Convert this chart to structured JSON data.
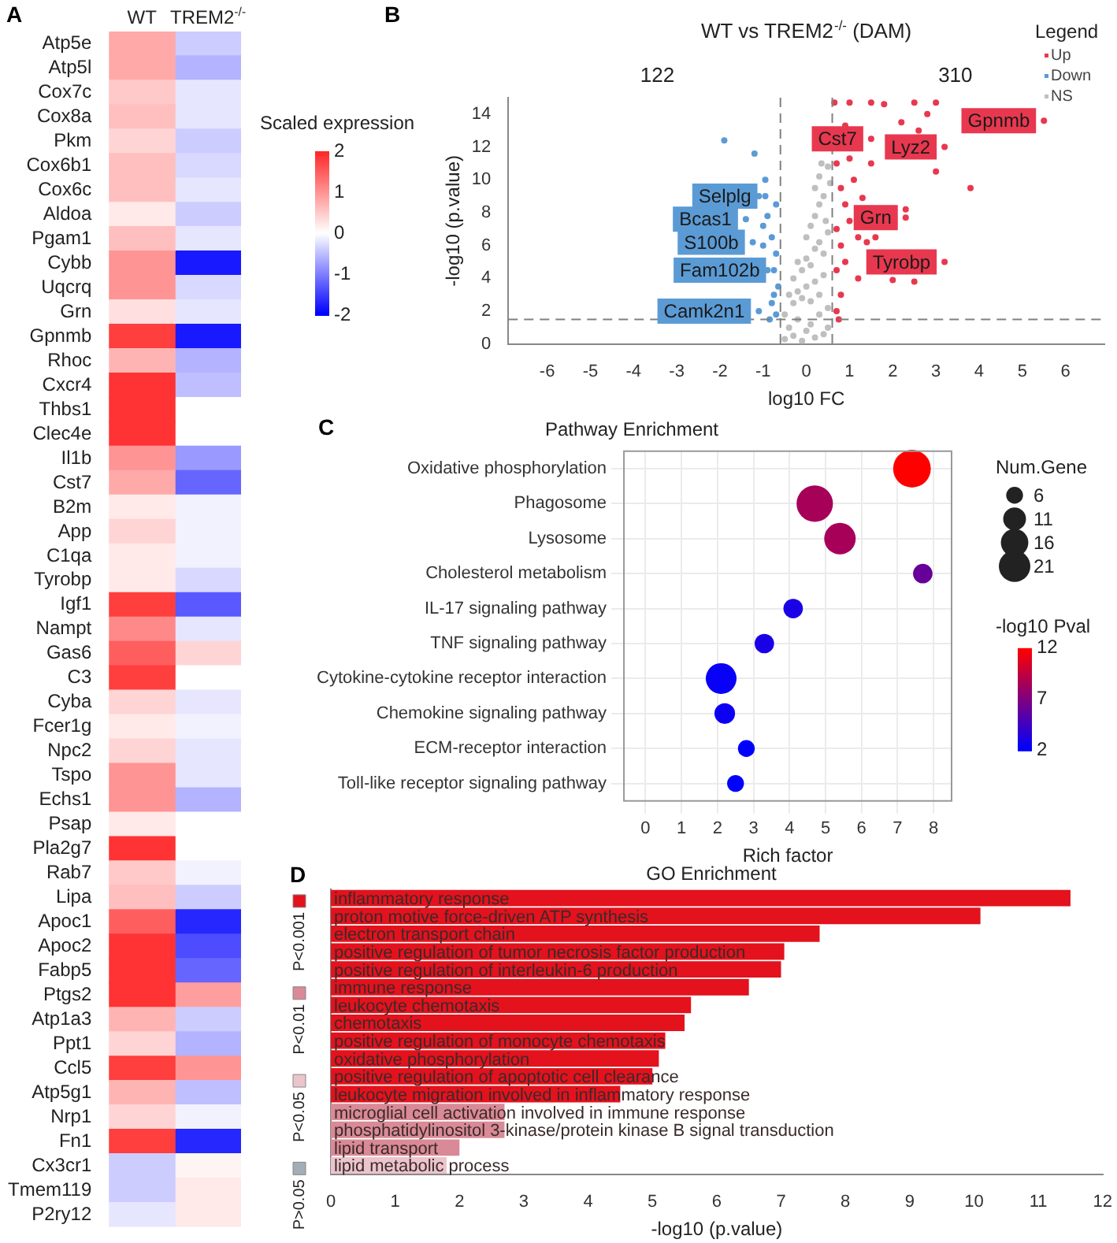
{
  "chart_data": [
    {
      "type": "heatmap",
      "annotations": [
        "A"
      ],
      "categories": [
        "WT",
        "TREM2$^{-/-}$"
      ],
      "y_categories": [
        "Atp5e",
        "Atp5l",
        "Cox7c",
        "Cox8a",
        "Pkm",
        "Cox6b1",
        "Cox6c",
        "Aldoa",
        "Pgam1",
        "Cybb",
        "Uqcrq",
        "Grn",
        "Gpnmb",
        "Rhoc",
        "Cxcr4",
        "Thbs1",
        "Clec4e",
        "Il1b",
        "Cst7",
        "B2m",
        "App",
        "C1qa",
        "Tyrobp",
        "Igf1",
        "Nampt",
        "Gas6",
        "C3",
        "Cyba",
        "Fcer1g",
        "Npc2",
        "Tspo",
        "Echs1",
        "Psap",
        "Pla2g7",
        "Rab7",
        "Lipa",
        "Apoc1",
        "Apoc2",
        "Fabp5",
        "Ptgs2",
        "Atp1a3",
        "Ppt1",
        "Ccl5",
        "Atp5g1",
        "Nrp1",
        "Fn1",
        "Cx3cr1",
        "Tmem119",
        "P2ry12"
      ],
      "cells": [
        [
          0.8,
          -0.4
        ],
        [
          0.8,
          -0.6
        ],
        [
          0.5,
          -0.2
        ],
        [
          0.6,
          -0.2
        ],
        [
          0.4,
          -0.4
        ],
        [
          0.6,
          -0.3
        ],
        [
          0.6,
          -0.2
        ],
        [
          0.2,
          -0.4
        ],
        [
          0.6,
          -0.2
        ],
        [
          1.0,
          -1.8
        ],
        [
          1.0,
          -0.3
        ],
        [
          0.3,
          -0.2
        ],
        [
          1.8,
          -1.8
        ],
        [
          0.7,
          -0.6
        ],
        [
          1.9,
          -0.5
        ],
        [
          1.9,
          0
        ],
        [
          1.9,
          0
        ],
        [
          1.0,
          -0.8
        ],
        [
          0.8,
          -1.2
        ],
        [
          0.2,
          -0.1
        ],
        [
          0.4,
          -0.1
        ],
        [
          0.2,
          -0.1
        ],
        [
          0.2,
          -0.3
        ],
        [
          1.8,
          -1.3
        ],
        [
          1.1,
          -0.2
        ],
        [
          1.5,
          0.4
        ],
        [
          1.8,
          0
        ],
        [
          0.4,
          -0.2
        ],
        [
          0.2,
          -0.1
        ],
        [
          0.4,
          -0.2
        ],
        [
          1.0,
          -0.2
        ],
        [
          1.0,
          -0.6
        ],
        [
          0.2,
          0
        ],
        [
          1.9,
          0
        ],
        [
          0.5,
          -0.1
        ],
        [
          0.6,
          -0.4
        ],
        [
          1.5,
          -1.7
        ],
        [
          1.9,
          -1.4
        ],
        [
          1.9,
          -1.2
        ],
        [
          1.9,
          0.9
        ],
        [
          0.7,
          -0.4
        ],
        [
          0.4,
          -0.6
        ],
        [
          1.8,
          1.0
        ],
        [
          0.7,
          -0.5
        ],
        [
          0.4,
          -0.1
        ],
        [
          1.8,
          -1.7
        ],
        [
          -0.4,
          0.1
        ],
        [
          -0.4,
          0.2
        ],
        [
          -0.2,
          0.2
        ]
      ],
      "clim": [
        -2,
        2
      ],
      "cticks": [
        -2,
        -1,
        0,
        1,
        2
      ],
      "clabel": "Scaled expression"
    },
    {
      "type": "scatter",
      "title": "WT vs TREM2$^{-/-}$ (DAM)",
      "xlabel": "log10 FC",
      "ylabel": "-log10 (p.value)",
      "legend_title": "Legend",
      "legend": "top right",
      "marker": "circle",
      "xlim": [
        -6.9,
        6.9
      ],
      "xticks": [
        -6,
        -5,
        -4,
        -3,
        -2,
        -1,
        0,
        1,
        2,
        3,
        4,
        5,
        6
      ],
      "ylim": [
        0,
        15
      ],
      "yticks": [
        0,
        2,
        4,
        6,
        8,
        10,
        12,
        14
      ],
      "series": [
        {
          "name": "Up",
          "color": "#e8384f",
          "x": [
            0.7,
            0.8,
            0.7,
            0.9,
            0.8,
            0.7,
            1.0,
            0.9,
            0.8,
            1.2,
            1.4,
            1.6,
            2.0,
            2.5,
            1.1,
            1.5,
            1.0,
            0.9,
            1.3,
            2.3,
            2.6,
            3.0,
            2.2,
            1.8,
            1.0,
            1.5,
            2.5,
            3.0,
            2.8,
            3.8,
            0.7,
            0.65,
            1.2,
            0.75,
            5.5,
            3.2,
            1.5,
            2.3,
            3.2
          ],
          "values": [
            2,
            3,
            4.5,
            5,
            6,
            7,
            7.5,
            8.5,
            9.5,
            4,
            6.2,
            6.5,
            3.9,
            3.8,
            10,
            11,
            11.3,
            13.3,
            8.9,
            8.2,
            13.0,
            10.5,
            13.5,
            14.6,
            14.7,
            14.7,
            14.7,
            14.7,
            14.0,
            9.5,
            11,
            14.7,
            6.5,
            1.5,
            13.6,
            12.0,
            12.5,
            7.7,
            5.0
          ]
        },
        {
          "name": "Down",
          "color": "#5b9bd5",
          "x": [
            -0.7,
            -0.8,
            -0.65,
            -0.9,
            -0.7,
            -0.8,
            -1.0,
            -0.9,
            -0.7,
            -1.1,
            -0.95,
            -1.2,
            -1.9,
            -0.85,
            -0.75,
            -1.0,
            -0.95,
            -1.4,
            -1.24,
            -0.75,
            -1.1
          ],
          "values": [
            1.8,
            2.5,
            3.5,
            4.5,
            5.5,
            6.5,
            7.2,
            7.8,
            8.5,
            9.0,
            10.0,
            11.6,
            12.4,
            1.5,
            3.0,
            6.0,
            9.0,
            7.6,
            6.2,
            4.5,
            2.0
          ]
        },
        {
          "name": "NS",
          "color": "#bfbfbf",
          "x": [
            -0.5,
            -0.4,
            -0.3,
            -0.2,
            -0.1,
            0,
            0.1,
            0.2,
            0.3,
            0.4,
            0.5,
            -0.5,
            -0.3,
            -0.2,
            -0.1,
            0,
            0.1,
            0.2,
            0.3,
            0.4,
            0.5,
            -0.1,
            0,
            0.1,
            0.2,
            0.3,
            0.4,
            0.5,
            0,
            0.1,
            0.2,
            0.3,
            0.4,
            0.2,
            0.3,
            0.35,
            0.45,
            -0.2,
            -0.3,
            -0.4,
            0.55,
            0.5
          ],
          "values": [
            0.3,
            1,
            0.5,
            1.5,
            0.2,
            0.8,
            1.2,
            0.4,
            1.8,
            0.6,
            1.0,
            1.8,
            2.5,
            3.2,
            2.8,
            3.5,
            2.6,
            3.8,
            3.0,
            4.2,
            2.2,
            4.5,
            5.2,
            4.8,
            5.8,
            6.2,
            5.5,
            6.8,
            6.5,
            7.2,
            7.8,
            8.5,
            9.0,
            9.5,
            10.2,
            11.0,
            7.5,
            5.0,
            4.0,
            3.0,
            9.8,
            10.8
          ]
        }
      ],
      "ref_lines": [
        {
          "axis": "x",
          "value": -0.6,
          "color": "#808080",
          "line_style": "dashed"
        },
        {
          "axis": "x",
          "value": 0.6,
          "color": "#808080",
          "line_style": "dashed"
        },
        {
          "axis": "y",
          "value": 1.5,
          "color": "#808080",
          "line_style": "dashed"
        }
      ],
      "annotations": [
        "B",
        "122",
        "310",
        {
          "text": "Gpnmb",
          "x": 5.5,
          "y": 13.6
        },
        {
          "text": "Lyz2",
          "x": 3.2,
          "y": 12.0
        },
        {
          "text": "Cst7",
          "x": 1.5,
          "y": 12.5
        },
        {
          "text": "Grn",
          "x": 2.3,
          "y": 7.7
        },
        {
          "text": "Tyrobp",
          "x": 3.2,
          "y": 5.0
        },
        {
          "text": "Selplg",
          "x": -0.95,
          "y": 9.0
        },
        {
          "text": "Bcas1",
          "x": -1.4,
          "y": 7.6
        },
        {
          "text": "S100b",
          "x": -1.24,
          "y": 6.2
        },
        {
          "text": "Fam102b",
          "x": -0.75,
          "y": 4.5
        },
        {
          "text": "Camk2n1",
          "x": -1.1,
          "y": 2.0
        }
      ]
    },
    {
      "type": "bubble",
      "orientation": "horizontal",
      "title": "Pathway Enrichment",
      "xlabel": "Rich factor",
      "legend_title": "Num.Gene",
      "clabel": "-log10 Pval",
      "annotations": [
        "C"
      ],
      "grid": true,
      "categories": [
        "Oxidative phosphorylation",
        "Phagosome",
        "Lysosome",
        "Cholesterol metabolism",
        "IL-17 signaling pathway",
        "TNF signaling pathway",
        "Cytokine-cytokine receptor interaction",
        "Chemokine signaling pathway",
        "ECM-receptor interaction",
        "Toll-like receptor signaling pathway"
      ],
      "values": [
        7.4,
        4.7,
        5.4,
        7.7,
        4.1,
        3.3,
        2.1,
        2.2,
        2.8,
        2.5
      ],
      "sizes": [
        30,
        28,
        21,
        8,
        8,
        8,
        20,
        9,
        6,
        6
      ],
      "size_legend": [
        6,
        11,
        16,
        21
      ],
      "cvalues": [
        12,
        8.5,
        8.5,
        6,
        3,
        3,
        2.3,
        2.5,
        2,
        2
      ],
      "clim": [
        2,
        12
      ],
      "cticks": [
        2,
        7,
        12
      ],
      "xlim": [
        -0.6,
        8.5
      ],
      "xticks": [
        0,
        1,
        2,
        3,
        4,
        5,
        6,
        7,
        8
      ]
    },
    {
      "type": "bar",
      "orientation": "horizontal",
      "stacked": true,
      "title": "GO Enrichment",
      "xlabel": "-log10 (p.value)",
      "annotations": [
        "D"
      ],
      "legend": "left",
      "categories": [
        "inflammatory response",
        "proton motive force-driven ATP synthesis",
        "electron transport chain",
        "positive regulation of tumor necrosis factor production",
        "positive regulation of interleukin-6 production",
        "immune response",
        "leukocyte chemotaxis",
        "chemotaxis",
        "positive regulation of monocyte chemotaxis",
        "oxidative phosphorylation",
        "positive regulation of apoptotic cell clearance",
        "leukocyte migration involved in inflammatory response",
        "microglial cell activation involved in immune response",
        "phosphatidylinositol 3-kinase/protein kinase B signal transduction",
        "lipid transport",
        "lipid metabolic process"
      ],
      "series": [
        {
          "name": "P<0.001",
          "color": "#e3121d",
          "values": [
            11.5,
            10.1,
            7.6,
            7.05,
            7.0,
            6.5,
            5.6,
            5.5,
            5.2,
            5.1,
            5.0,
            4.5,
            null,
            null,
            null,
            null
          ]
        },
        {
          "name": "P<0.01",
          "color": "#d98a96",
          "values": [
            null,
            null,
            null,
            null,
            null,
            null,
            null,
            null,
            null,
            null,
            null,
            null,
            2.7,
            2.7,
            2.0,
            null
          ]
        },
        {
          "name": "P<0.05",
          "color": "#ecc4cc",
          "values": [
            null,
            null,
            null,
            null,
            null,
            null,
            null,
            null,
            null,
            null,
            null,
            null,
            null,
            null,
            null,
            1.8
          ]
        },
        {
          "name": "P>0.05",
          "color": "#a3adb8",
          "values": [
            null,
            null,
            null,
            null,
            null,
            null,
            null,
            null,
            null,
            null,
            null,
            null,
            null,
            null,
            null,
            null
          ]
        }
      ],
      "xlim": [
        0,
        12
      ],
      "xticks": [
        0,
        1,
        2,
        3,
        4,
        5,
        6,
        7,
        8,
        9,
        10,
        11,
        12
      ]
    }
  ]
}
